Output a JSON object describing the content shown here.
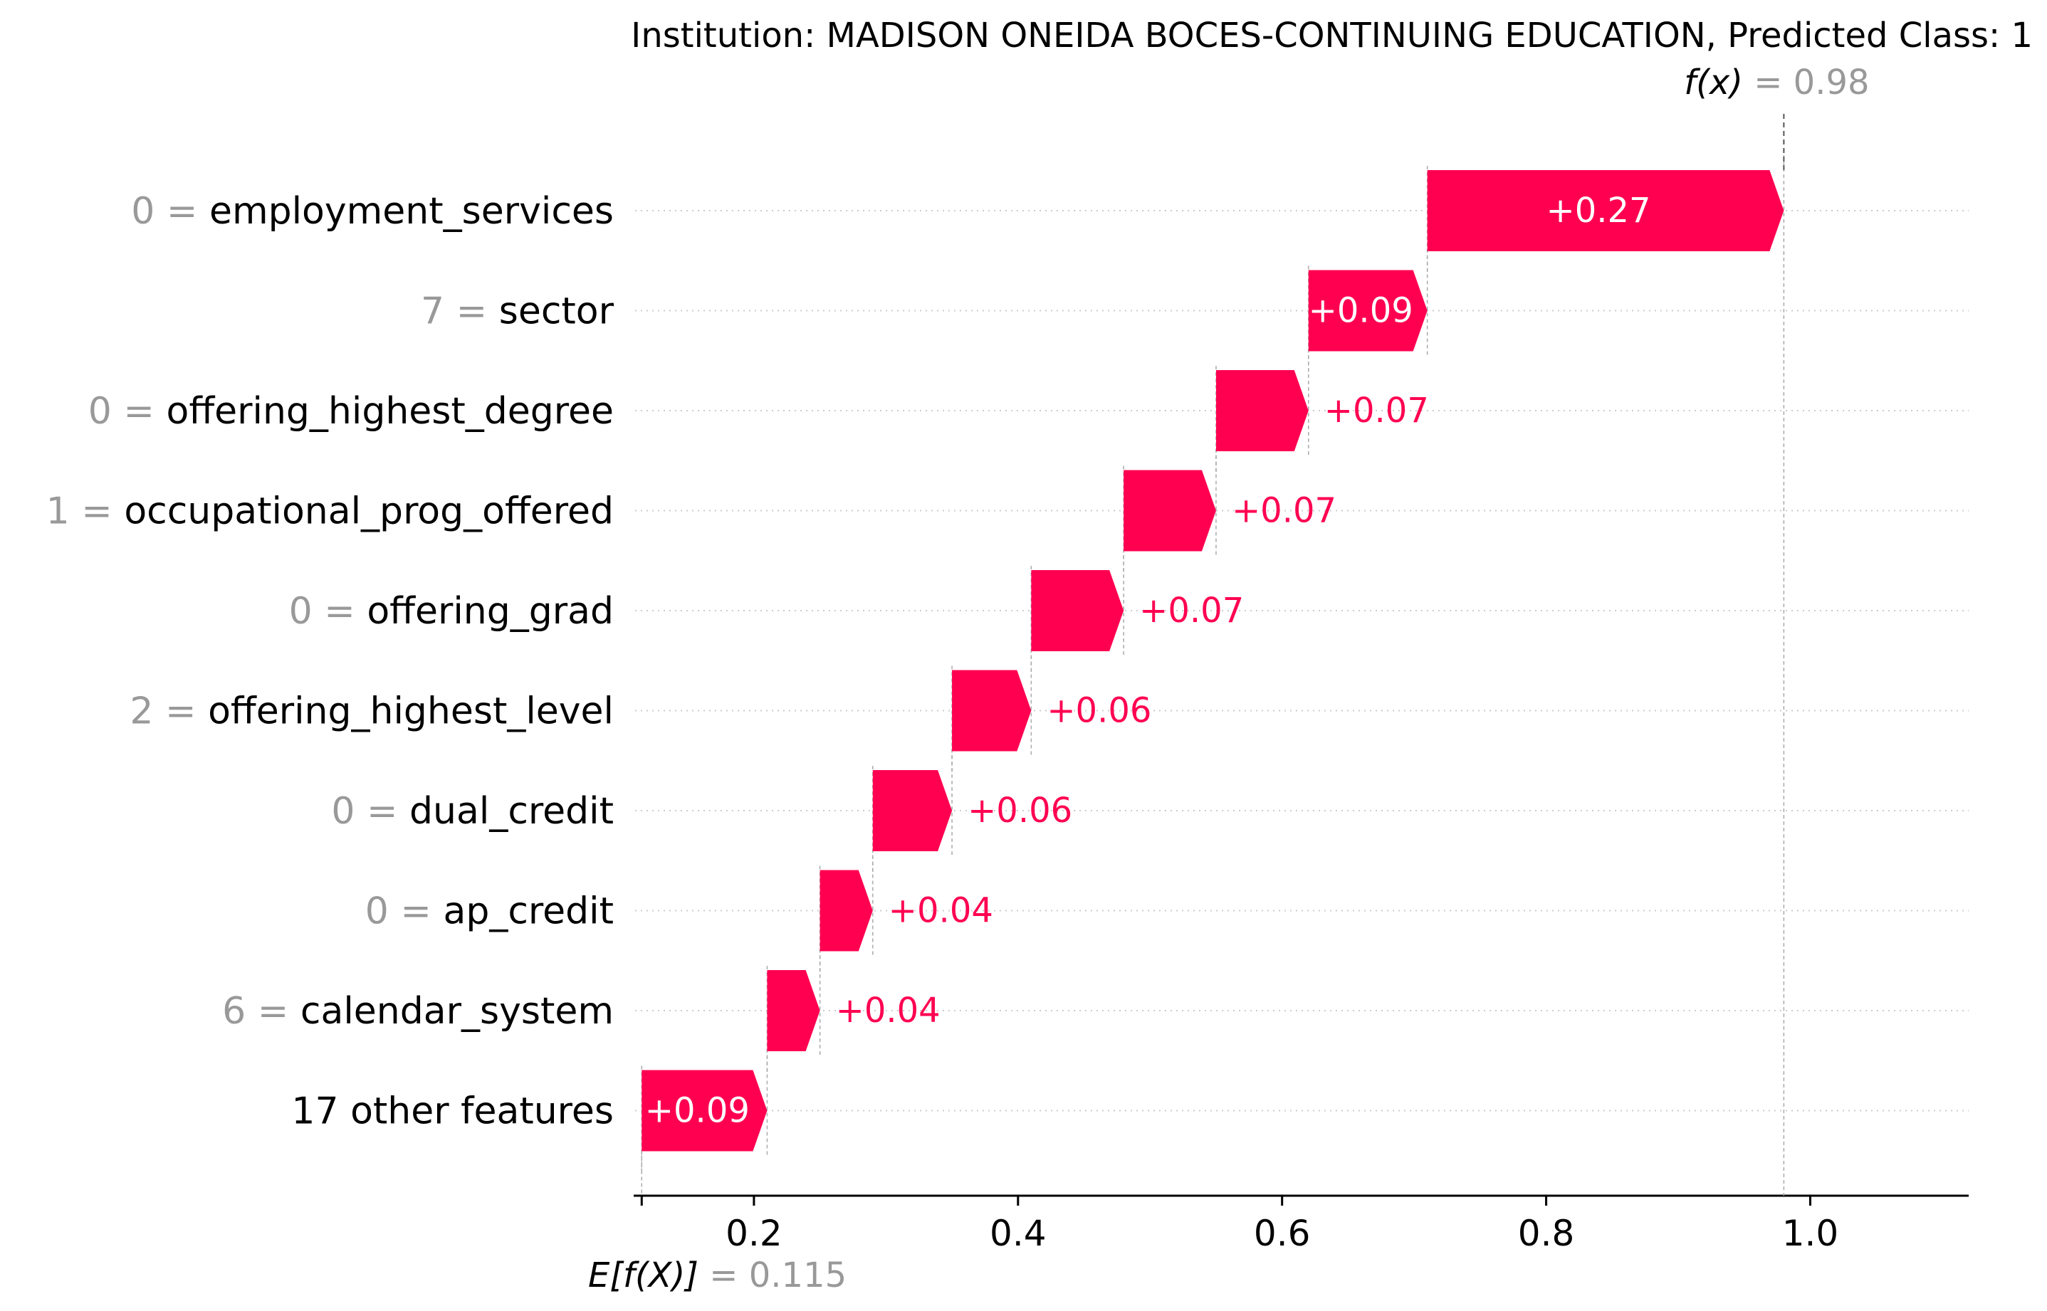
{
  "chart_data": {
    "type": "waterfall",
    "title": "Institution: MADISON ONEIDA BOCES-CONTINUING EDUCATION, Predicted Class: 1",
    "base_value": 0.115,
    "base_label": "E[f(X)]",
    "base_value_text": "= 0.115",
    "output_value": 0.98,
    "output_label": "f(x)",
    "output_value_text": "= 0.98",
    "xlim": [
      0.11,
      1.12
    ],
    "xticks": [
      0.2,
      0.4,
      0.6,
      0.8,
      1.0
    ],
    "xtick_labels": [
      "0.2",
      "0.4",
      "0.6",
      "0.8",
      "1.0"
    ],
    "colors": {
      "positive": "#ff0051",
      "value_gray": "#999999",
      "grid": "#cccccc"
    },
    "features": [
      {
        "value": "0",
        "name": "employment_services",
        "contribution": 0.27,
        "label": "+0.27"
      },
      {
        "value": "7",
        "name": "sector",
        "contribution": 0.09,
        "label": "+0.09"
      },
      {
        "value": "0",
        "name": "offering_highest_degree",
        "contribution": 0.07,
        "label": "+0.07"
      },
      {
        "value": "1",
        "name": "occupational_prog_offered",
        "contribution": 0.07,
        "label": "+0.07"
      },
      {
        "value": "0",
        "name": "offering_grad",
        "contribution": 0.07,
        "label": "+0.07"
      },
      {
        "value": "2",
        "name": "offering_highest_level",
        "contribution": 0.06,
        "label": "+0.06"
      },
      {
        "value": "0",
        "name": "dual_credit",
        "contribution": 0.06,
        "label": "+0.06"
      },
      {
        "value": "0",
        "name": "ap_credit",
        "contribution": 0.04,
        "label": "+0.04"
      },
      {
        "value": "6",
        "name": "calendar_system",
        "contribution": 0.04,
        "label": "+0.04"
      },
      {
        "value": "",
        "name": "17 other features",
        "contribution": 0.09,
        "label": "+0.09"
      }
    ]
  }
}
